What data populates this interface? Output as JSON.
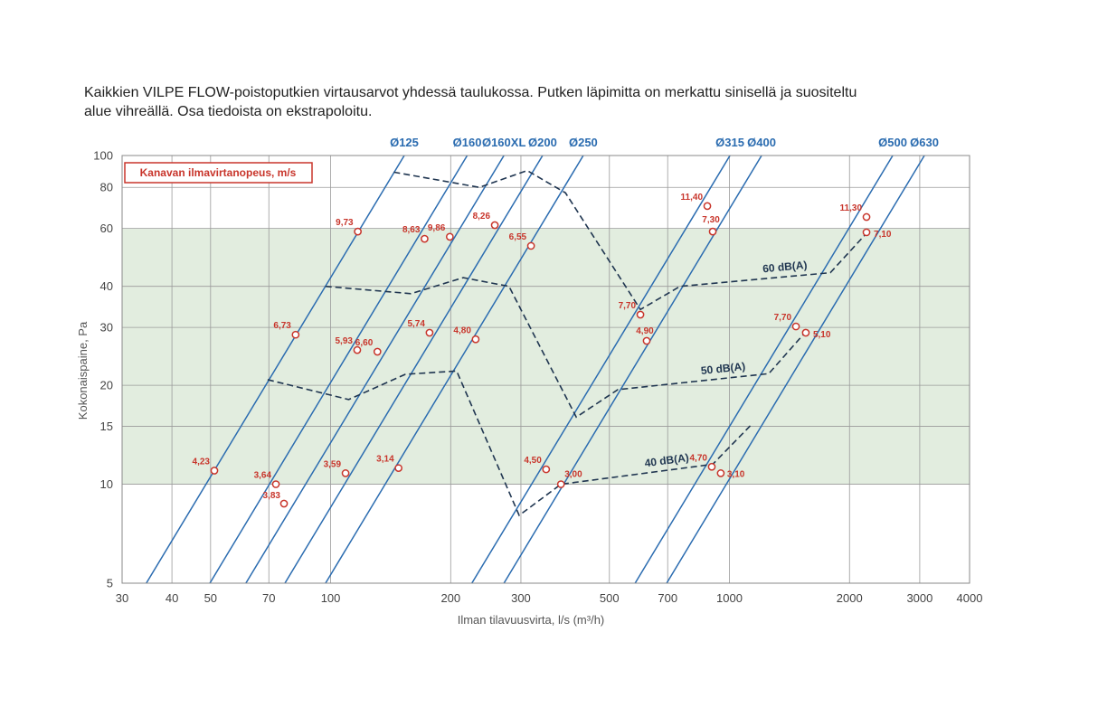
{
  "chart_data": {
    "type": "line",
    "title": [
      "Kaikkien VILPE FLOW-poistoputkien virtausarvot yhdessä taulukossa. Putken läpimitta on merkattu sinisellä ja suositeltu",
      "alue vihreällä. Osa tiedoista on ekstrapoloitu."
    ],
    "x_label": "Ilman tilavuusvirta, l/s (m³/h)",
    "y_label": "Kokonaispaine, Pa",
    "xlim": [
      30,
      4000
    ],
    "ylim": [
      5,
      100
    ],
    "x_log": true,
    "y_log": true,
    "grid": true,
    "xticks": [
      30,
      40,
      50,
      70,
      100,
      200,
      300,
      500,
      700,
      1000,
      2000,
      3000,
      4000
    ],
    "yticks": [
      5,
      10,
      15,
      20,
      30,
      40,
      60,
      80,
      100
    ],
    "recommended_range": [
      10,
      60
    ],
    "recommended_color": "#e2eddf",
    "series": [
      {
        "name": "Ø125",
        "style": "line",
        "color": "#2b6cb0",
        "x": [
          34.5,
          153
        ],
        "values": [
          5,
          100
        ]
      },
      {
        "name": "Ø160",
        "style": "line",
        "color": "#2b6cb0",
        "x": [
          49.8,
          220
        ],
        "values": [
          5,
          100
        ]
      },
      {
        "name": "Ø160XL",
        "style": "line",
        "color": "#2b6cb0",
        "x": [
          61.3,
          272
        ],
        "values": [
          5,
          100
        ]
      },
      {
        "name": "Ø200",
        "style": "line",
        "color": "#2b6cb0",
        "x": [
          76.8,
          340
        ],
        "values": [
          5,
          100
        ]
      },
      {
        "name": "Ø250",
        "style": "line",
        "color": "#2b6cb0",
        "x": [
          97.1,
          430
        ],
        "values": [
          5,
          100
        ]
      },
      {
        "name": "Ø315",
        "style": "line",
        "color": "#2b6cb0",
        "x": [
          226,
          1003
        ],
        "values": [
          5,
          100
        ]
      },
      {
        "name": "Ø400",
        "style": "line",
        "color": "#2b6cb0",
        "x": [
          272,
          1204
        ],
        "values": [
          5,
          100
        ]
      },
      {
        "name": "Ø500",
        "style": "line",
        "color": "#2b6cb0",
        "x": [
          580,
          2567
        ],
        "values": [
          5,
          100
        ]
      },
      {
        "name": "Ø630",
        "style": "line",
        "color": "#2b6cb0",
        "x": [
          696,
          3082
        ],
        "values": [
          5,
          100
        ]
      },
      {
        "name": "60 dB(A)",
        "style": "dashed",
        "color": "#1f3550",
        "x": [
          144,
          236,
          311,
          388,
          598,
          752,
          1790,
          2206
        ],
        "values": [
          89,
          80,
          90,
          77,
          34,
          40,
          44,
          58
        ]
      },
      {
        "name": "50 dB(A)",
        "style": "dashed",
        "color": "#1f3550",
        "x": [
          97,
          159,
          215,
          280,
          413,
          525,
          1255,
          1546
        ],
        "values": [
          40,
          38,
          42.5,
          40,
          16,
          19.4,
          21.7,
          28.9
        ]
      },
      {
        "name": "40 dB(A)",
        "style": "dashed",
        "color": "#1f3550",
        "x": [
          69.5,
          111,
          154,
          207,
          297,
          378,
          908,
          1142
        ],
        "values": [
          20.8,
          18.1,
          21.6,
          22.1,
          8.04,
          10,
          11.5,
          15.3
        ]
      },
      {
        "name": "Kanavan ilmavirtanopeus, m/s",
        "style": "points",
        "color": "#c8352b",
        "x": [
          51.1,
          117,
          81.7,
          72.9,
          76.4,
          109,
          116.6,
          131,
          172,
          148,
          177,
          199,
          231,
          258,
          318,
          347,
          378,
          598,
          620,
          880,
          908,
          903,
          951,
          2206,
          2206,
          1468,
          1554
        ],
        "values": [
          11,
          58.7,
          28.5,
          10,
          8.73,
          10.8,
          25.6,
          25.3,
          55.8,
          11.2,
          28.9,
          56.6,
          27.6,
          61.4,
          53.1,
          11.1,
          10,
          32.8,
          27.3,
          70.2,
          58.7,
          11.3,
          10.8,
          65,
          58.4,
          30.2,
          28.9
        ],
        "velocities": [
          4.23,
          9.73,
          6.73,
          3.64,
          3.83,
          3.59,
          5.93,
          6.6,
          8.63,
          3.14,
          5.74,
          9.86,
          4.8,
          8.26,
          6.55,
          4.5,
          3,
          7.7,
          4.9,
          11.4,
          7.3,
          4.7,
          3.1,
          11.3,
          7.1,
          7.7,
          5.1
        ],
        "velocity_labels": [
          "4,23",
          "9,73",
          "6,73",
          "3,64",
          "3,83",
          "3,59",
          "5,93",
          "6,60",
          "8,63",
          "3,14",
          "5,74",
          "9,86",
          "4,80",
          "8,26",
          "6,55",
          "4,50",
          "3,00",
          "7,70",
          "4,90",
          "11,40",
          "7,30",
          "4,70",
          "3,10",
          "11,30",
          "7,10",
          "7,70",
          "5,10"
        ]
      }
    ]
  }
}
